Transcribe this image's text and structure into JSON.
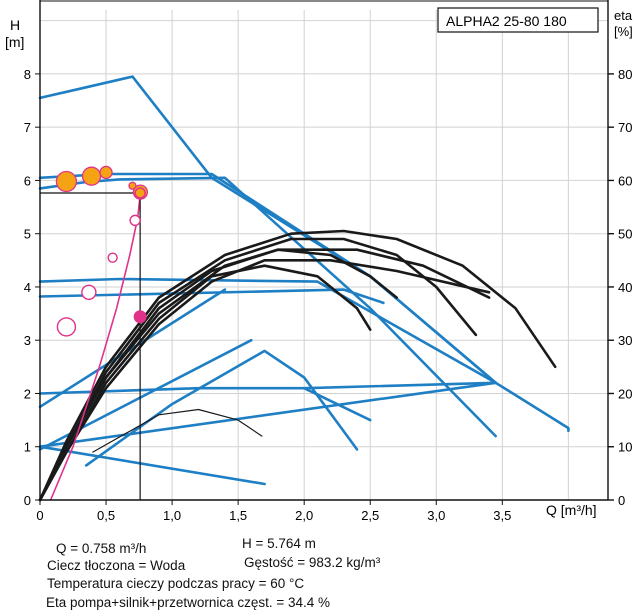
{
  "chart_data": {
    "type": "line",
    "title": "ALPHA2 25-80 180",
    "y_left_label": [
      "H",
      "[m]"
    ],
    "y_right_label": [
      "eta",
      "[%]"
    ],
    "xlabel": "Q [m³/h]",
    "x_ticks": [
      "0",
      "0,5",
      "1,0",
      "1,5",
      "2,0",
      "2,5",
      "3,0",
      "3,5"
    ],
    "y_left_ticks": [
      "0",
      "1",
      "2",
      "3",
      "4",
      "5",
      "6",
      "7",
      "8"
    ],
    "y_right_ticks": [
      "0",
      "10",
      "20",
      "30",
      "40",
      "50",
      "60",
      "70",
      "80"
    ],
    "xlim": [
      0,
      4.3
    ],
    "ylim_left": [
      0,
      9.2
    ],
    "ylim_right": [
      0,
      92
    ],
    "grid": true,
    "colors": {
      "grid": "#d2d2d2",
      "pump_curves": "#1f7fc4",
      "efficiency_curves": "#1a1a1a",
      "system_curve": "#e0328a",
      "marker_fill": "#f5a315",
      "marker_outline": "#e0328a",
      "duty_point": "#e0328a"
    },
    "pump_curves": [
      [
        [
          0,
          7.55
        ],
        [
          0.3,
          7.72
        ],
        [
          0.7,
          7.95
        ],
        [
          1.3,
          6.05
        ],
        [
          2.5,
          4.2
        ],
        [
          3.45,
          2.2
        ],
        [
          4.0,
          1.35
        ],
        [
          4.0,
          1.3
        ]
      ],
      [
        [
          0,
          6.05
        ],
        [
          0.5,
          6.12
        ],
        [
          0.7,
          6.12
        ],
        [
          1.3,
          6.12
        ],
        [
          2.5,
          4.2
        ],
        [
          3.45,
          2.2
        ]
      ],
      [
        [
          0,
          5.85
        ],
        [
          0.35,
          5.97
        ],
        [
          0.6,
          6.02
        ],
        [
          1.4,
          6.05
        ],
        [
          2.5,
          3.6
        ],
        [
          3.45,
          1.2
        ]
      ],
      [
        [
          0,
          4.1
        ],
        [
          0.6,
          4.15
        ],
        [
          2.1,
          4.1
        ],
        [
          3.45,
          2.2
        ]
      ],
      [
        [
          0,
          3.82
        ],
        [
          2.3,
          3.95
        ],
        [
          2.6,
          3.7
        ]
      ],
      [
        [
          0,
          2.0
        ],
        [
          1.2,
          2.1
        ],
        [
          2.0,
          2.1
        ],
        [
          2.5,
          1.5
        ]
      ],
      [
        [
          0,
          1.75
        ],
        [
          1.4,
          3.95
        ]
      ],
      [
        [
          0,
          1.0
        ],
        [
          3.45,
          2.2
        ]
      ],
      [
        [
          0,
          0.95
        ],
        [
          1.6,
          3.0
        ]
      ],
      [
        [
          0,
          1.0
        ],
        [
          1.7,
          0.3
        ]
      ],
      [
        [
          0.35,
          0.65
        ],
        [
          1.0,
          1.8
        ],
        [
          1.7,
          2.8
        ],
        [
          2.0,
          2.3
        ],
        [
          2.4,
          0.95
        ]
      ],
      [
        [
          2.0,
          2.1
        ],
        [
          3.45,
          2.2
        ]
      ]
    ],
    "efficiency_curves": [
      [
        [
          0,
          0
        ],
        [
          0.2,
          11
        ],
        [
          0.5,
          25
        ],
        [
          0.9,
          38
        ],
        [
          1.4,
          46
        ],
        [
          1.9,
          50
        ],
        [
          2.3,
          50.5
        ],
        [
          2.7,
          49
        ],
        [
          3.2,
          44
        ],
        [
          3.6,
          36
        ],
        [
          3.9,
          25
        ]
      ],
      [
        [
          0,
          0
        ],
        [
          0.2,
          10
        ],
        [
          0.5,
          24
        ],
        [
          0.9,
          37
        ],
        [
          1.4,
          45
        ],
        [
          1.9,
          49
        ],
        [
          2.3,
          49
        ],
        [
          2.7,
          46
        ],
        [
          3.0,
          40
        ],
        [
          3.3,
          31
        ]
      ],
      [
        [
          0,
          0
        ],
        [
          0.2,
          10
        ],
        [
          0.5,
          23
        ],
        [
          0.9,
          35
        ],
        [
          1.4,
          44
        ],
        [
          1.8,
          47
        ],
        [
          2.2,
          46
        ],
        [
          2.5,
          42
        ],
        [
          2.7,
          38
        ]
      ],
      [
        [
          0,
          0
        ],
        [
          0.2,
          9
        ],
        [
          0.5,
          22
        ],
        [
          0.9,
          34
        ],
        [
          1.3,
          42
        ],
        [
          1.7,
          44
        ],
        [
          2.1,
          42
        ],
        [
          2.4,
          36
        ],
        [
          2.5,
          32
        ]
      ],
      [
        [
          0,
          0
        ],
        [
          0.2,
          9
        ],
        [
          0.5,
          21
        ],
        [
          0.9,
          33
        ],
        [
          1.3,
          41
        ],
        [
          1.7,
          45
        ],
        [
          2.2,
          45
        ],
        [
          2.7,
          43
        ],
        [
          3.4,
          39
        ]
      ],
      [
        [
          0,
          0
        ],
        [
          0.2,
          10
        ],
        [
          0.5,
          23
        ],
        [
          0.9,
          36
        ],
        [
          1.3,
          43
        ],
        [
          1.8,
          47
        ],
        [
          2.4,
          47
        ],
        [
          2.9,
          44
        ],
        [
          3.4,
          38
        ]
      ],
      [
        [
          0.4,
          9
        ],
        [
          0.9,
          16
        ],
        [
          1.2,
          17
        ],
        [
          1.5,
          15
        ],
        [
          1.68,
          12
        ]
      ]
    ],
    "system_curve": [
      [
        0.08,
        0
      ],
      [
        0.25,
        1.0
      ],
      [
        0.45,
        2.5
      ],
      [
        0.58,
        3.6
      ],
      [
        0.68,
        4.6
      ],
      [
        0.74,
        5.3
      ],
      [
        0.76,
        5.764
      ]
    ],
    "markers": [
      {
        "q": 0.2,
        "h": 5.98,
        "size": 10
      },
      {
        "q": 0.39,
        "h": 6.08,
        "size": 9
      },
      {
        "q": 0.5,
        "h": 6.15,
        "size": 6
      },
      {
        "q": 0.7,
        "h": 5.9,
        "size": 3.5
      },
      {
        "q": 0.76,
        "h": 5.78,
        "size": 7
      }
    ],
    "hollow_markers": [
      {
        "q": 0.2,
        "h": 3.25,
        "size": 9
      },
      {
        "q": 0.37,
        "h": 3.9,
        "size": 7
      },
      {
        "q": 0.55,
        "h": 4.55,
        "size": 4.5
      },
      {
        "q": 0.72,
        "h": 5.25,
        "size": 5
      }
    ],
    "duty_point": {
      "q": 0.758,
      "h": 5.764
    },
    "efficiency_point": {
      "q": 0.758,
      "eta": 34.4
    }
  },
  "info": {
    "q": "Q = 0.758 m³/h",
    "h": "H = 5.764 m",
    "fluid": "Ciecz tłoczona = Woda",
    "density": "Gęstość = 983.2 kg/m³",
    "temperature": "Temperatura cieczy podczas pracy = 60 °C",
    "efficiency": "Eta pompa+silnik+przetwornica częst. = 34.4 %"
  }
}
